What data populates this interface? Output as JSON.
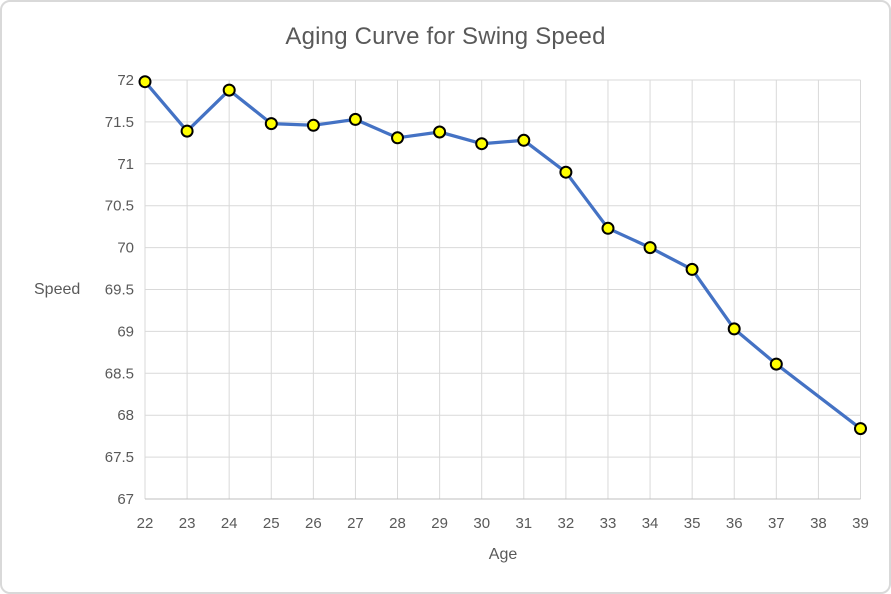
{
  "chart": {
    "title": "Aging Curve for Swing Speed",
    "x_axis_title": "Age",
    "y_axis_title": "Speed"
  },
  "chart_data": {
    "type": "line",
    "title": "Aging Curve for Swing Speed",
    "xlabel": "Age",
    "ylabel": "Speed",
    "x": [
      22,
      23,
      24,
      25,
      26,
      27,
      28,
      29,
      30,
      31,
      32,
      33,
      34,
      35,
      36,
      37,
      38,
      39
    ],
    "series": [
      {
        "name": "Swing Speed",
        "values": [
          71.98,
          71.39,
          71.88,
          71.48,
          71.46,
          71.53,
          71.31,
          71.38,
          71.24,
          71.28,
          70.9,
          70.23,
          70.0,
          69.74,
          69.03,
          68.61,
          null,
          67.84
        ]
      }
    ],
    "ylim": [
      67,
      72
    ],
    "y_tick_step": 0.5,
    "y_tick_labels": [
      "67",
      "67.5",
      "68",
      "68.5",
      "69",
      "69.5",
      "70",
      "70.5",
      "71",
      "71.5",
      "72"
    ],
    "grid": true,
    "legend_position": "none",
    "colors": {
      "line": "#4472C4",
      "marker_fill": "#FFFF00",
      "marker_border": "#000000",
      "gridline": "#D9D9D9",
      "axis_line": "#BFBFBF",
      "text": "#595959",
      "chart_border": "#D9D9D9"
    }
  }
}
